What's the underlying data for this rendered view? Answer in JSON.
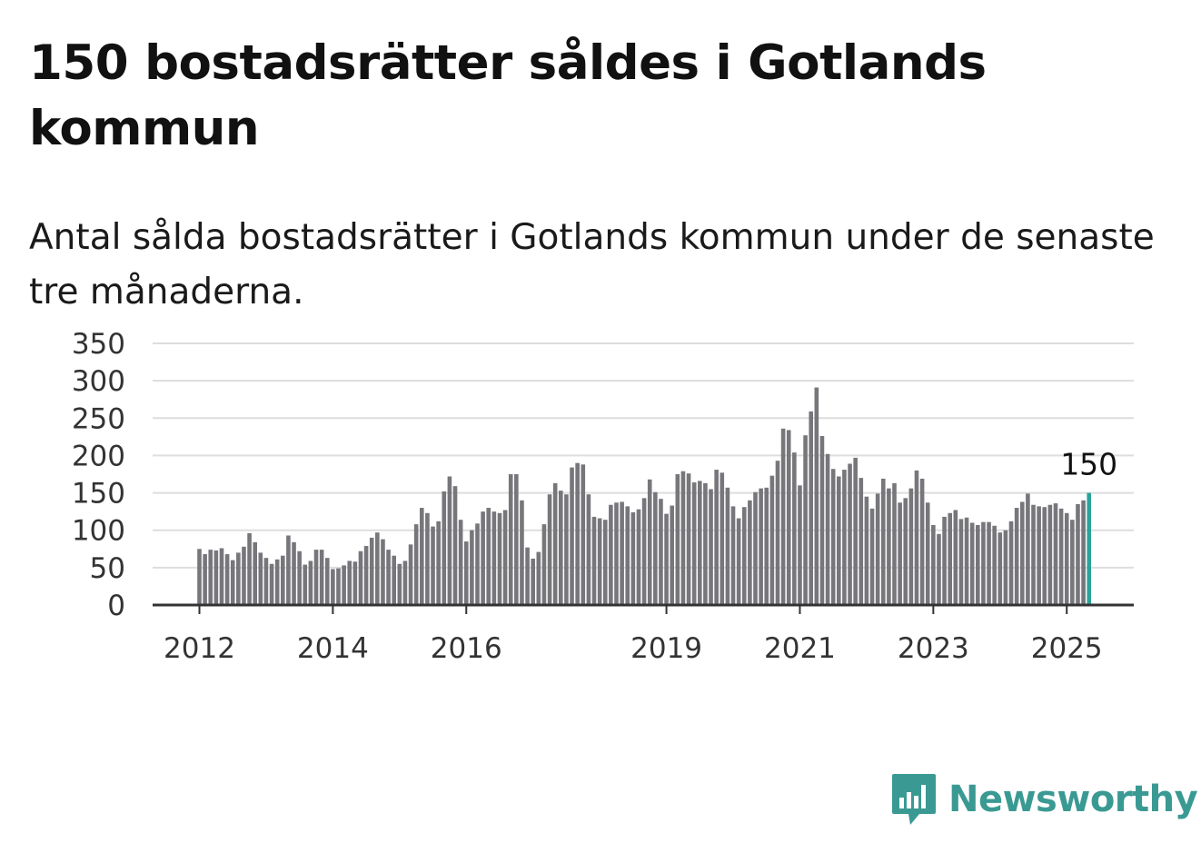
{
  "title": "150 bostadsrätter såldes i Gotlands kommun",
  "subtitle": "Antal sålda bostadsrätter i Gotlands kommun under de senaste tre månaderna.",
  "brand": {
    "name": "Newsworthy",
    "color": "#3a9a93"
  },
  "colors": {
    "bar": "#77767b",
    "highlight": "#2aa39b",
    "grid": "#dddddd",
    "axis": "#333333"
  },
  "chart_data": {
    "type": "bar",
    "title": "150 bostadsrätter såldes i Gotlands kommun",
    "subtitle": "Antal sålda bostadsrätter i Gotlands kommun under de senaste tre månaderna.",
    "xlabel": "",
    "ylabel": "",
    "ylim": [
      0,
      350
    ],
    "yticks": [
      "0",
      "50",
      "100",
      "150",
      "200",
      "250",
      "300",
      "350"
    ],
    "xticks": [
      {
        "label": "2012",
        "index": 0
      },
      {
        "label": "2014",
        "index": 24
      },
      {
        "label": "2016",
        "index": 48
      },
      {
        "label": "2019",
        "index": 84
      },
      {
        "label": "2021",
        "index": 108
      },
      {
        "label": "2023",
        "index": 132
      },
      {
        "label": "2025",
        "index": 156
      }
    ],
    "grid": true,
    "legend": "none",
    "highlight_label": "150",
    "values": [
      75,
      68,
      74,
      73,
      76,
      68,
      60,
      70,
      78,
      96,
      84,
      70,
      63,
      55,
      61,
      66,
      93,
      84,
      72,
      54,
      59,
      74,
      74,
      63,
      48,
      49,
      53,
      59,
      58,
      72,
      79,
      90,
      97,
      88,
      74,
      66,
      55,
      59,
      81,
      108,
      130,
      123,
      105,
      112,
      152,
      172,
      159,
      114,
      85,
      100,
      109,
      125,
      130,
      125,
      123,
      127,
      175,
      175,
      140,
      77,
      62,
      71,
      108,
      148,
      163,
      153,
      148,
      184,
      190,
      188,
      148,
      118,
      116,
      114,
      134,
      137,
      138,
      132,
      124,
      128,
      143,
      168,
      151,
      142,
      122,
      133,
      175,
      179,
      176,
      164,
      166,
      163,
      155,
      181,
      177,
      157,
      132,
      116,
      131,
      140,
      151,
      156,
      157,
      173,
      193,
      236,
      234,
      204,
      160,
      227,
      259,
      291,
      226,
      202,
      182,
      172,
      181,
      189,
      197,
      170,
      145,
      129,
      149,
      169,
      156,
      163,
      137,
      143,
      156,
      180,
      169,
      137,
      107,
      95,
      118,
      123,
      127,
      115,
      117,
      110,
      107,
      111,
      111,
      106,
      97,
      100,
      112,
      130,
      138,
      149,
      134,
      132,
      131,
      134,
      136,
      129,
      123,
      114,
      135,
      140,
      150
    ]
  }
}
